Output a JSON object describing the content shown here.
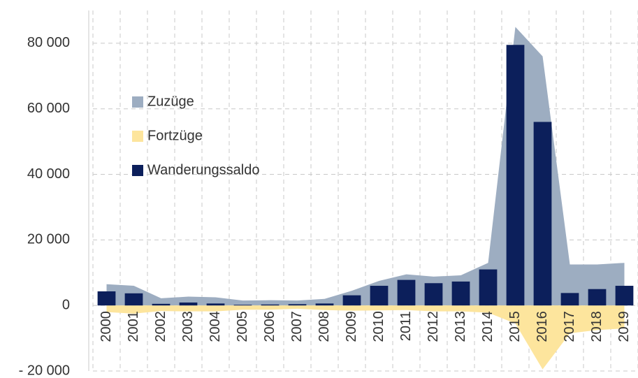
{
  "chart_data": {
    "type": "area_bar",
    "categories": [
      "2000",
      "2001",
      "2002",
      "2003",
      "2004",
      "2005",
      "2006",
      "2007",
      "2008",
      "2009",
      "2010",
      "2011",
      "2012",
      "2013",
      "2014",
      "2015",
      "2016",
      "2017",
      "2018",
      "2019"
    ],
    "series": [
      {
        "name": "Zuzüge",
        "color": "#9dadc1",
        "kind": "area",
        "values": [
          6500,
          6000,
          2200,
          2700,
          2500,
          1500,
          1600,
          1500,
          2000,
          4500,
          7500,
          9500,
          8800,
          9200,
          13000,
          85000,
          76000,
          12500,
          12500,
          13000
        ]
      },
      {
        "name": "Fortzüge",
        "color": "#fde59d",
        "kind": "area",
        "values": [
          -2000,
          -2500,
          -1700,
          -1800,
          -1800,
          -1300,
          -1300,
          -1000,
          -1400,
          -1600,
          -1500,
          -1400,
          -1800,
          -1800,
          -2200,
          -5500,
          -19500,
          -8500,
          -7500,
          -7000
        ]
      },
      {
        "name": "Wanderungssaldo",
        "color": "#0c1f5b",
        "kind": "bar",
        "values": [
          4300,
          3700,
          500,
          900,
          600,
          200,
          300,
          400,
          600,
          3100,
          6000,
          7800,
          6800,
          7300,
          11000,
          79500,
          56000,
          3800,
          5000,
          6000
        ]
      }
    ],
    "ylim": [
      -20000,
      90000
    ],
    "yticks": [
      {
        "value": -20000,
        "label": "- 20 000"
      },
      0,
      {
        "value": 20000,
        "label": "20 000"
      },
      {
        "value": 40000,
        "label": "40 000"
      },
      {
        "value": 60000,
        "label": "60 000"
      },
      {
        "value": 80000,
        "label": "80 000"
      }
    ],
    "grid": true,
    "legend": "upper-left"
  }
}
